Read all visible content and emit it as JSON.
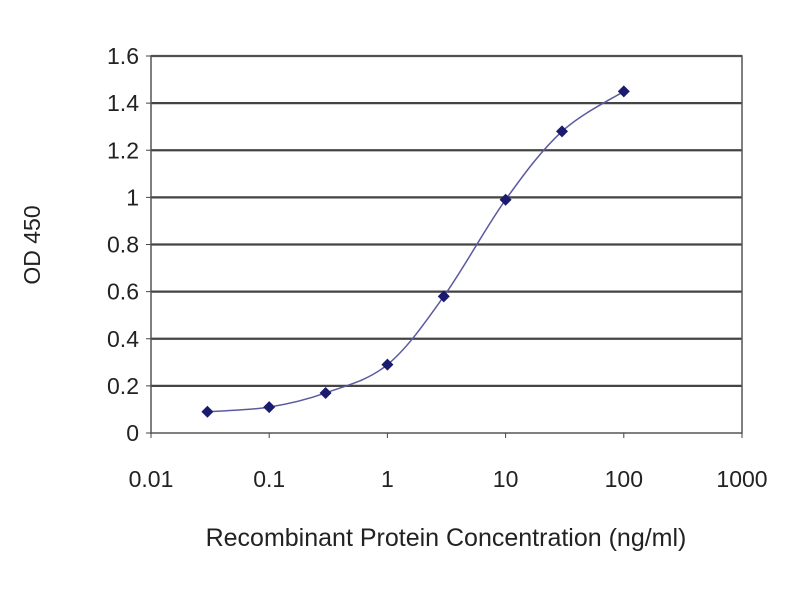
{
  "chart_data": {
    "type": "line",
    "title": "",
    "xlabel": "Recombinant Protein Concentration (ng/ml)",
    "ylabel": "OD 450",
    "xscale": "log",
    "xlim": [
      0.01,
      1000
    ],
    "ylim": [
      0,
      1.6
    ],
    "xticks": [
      0.01,
      0.1,
      1,
      10,
      100,
      1000
    ],
    "xtick_labels": [
      "0.01",
      "0.1",
      "1",
      "10",
      "100",
      "1000"
    ],
    "yticks": [
      0,
      0.2,
      0.4,
      0.6,
      0.8,
      1,
      1.2,
      1.4,
      1.6
    ],
    "ytick_labels": [
      "0",
      "0.2",
      "0.4",
      "0.6",
      "0.8",
      "1",
      "1.2",
      "1.4",
      "1.6"
    ],
    "grid": "horizontal",
    "smoothed": true,
    "marker": "diamond",
    "series": [
      {
        "x": [
          0.03,
          0.1,
          0.3,
          1,
          3,
          10,
          30,
          100
        ],
        "y": [
          0.09,
          0.11,
          0.17,
          0.29,
          0.58,
          0.99,
          1.28,
          1.45
        ],
        "color": "#1a1a6e"
      }
    ]
  }
}
